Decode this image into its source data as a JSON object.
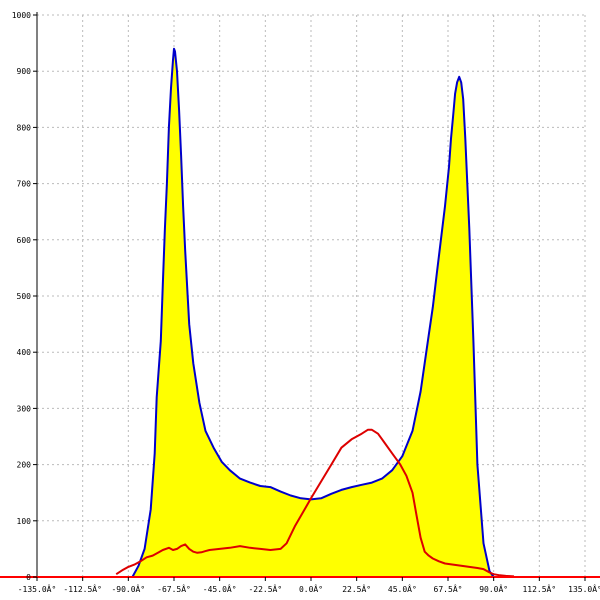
{
  "chart_data": {
    "type": "area",
    "title": "",
    "xlabel": "",
    "ylabel": "",
    "xlim": [
      -135,
      135
    ],
    "ylim": [
      0,
      1000
    ],
    "grid": true,
    "x_ticks": [
      -135,
      -112.5,
      -90,
      -67.5,
      -45,
      -22.5,
      0,
      22.5,
      45,
      67.5,
      90,
      112.5,
      135
    ],
    "x_tick_labels": [
      "-135.0Â°",
      "-112.5Â°",
      "-90.0Â°",
      "-67.5Â°",
      "-45.0Â°",
      "-22.5Â°",
      "0.0Â°",
      "22.5Â°",
      "45.0Â°",
      "67.5Â°",
      "90.0Â°",
      "112.5Â°",
      "135.0Â°"
    ],
    "y_ticks": [
      0,
      100,
      200,
      300,
      400,
      500,
      600,
      700,
      800,
      900,
      1000
    ],
    "y_tick_labels": [
      "0",
      "100",
      "200",
      "300",
      "400",
      "500",
      "600",
      "700",
      "800",
      "900",
      "1000"
    ],
    "colors": {
      "fill": "#ffff00",
      "fill_outline": "#0000cc",
      "line": "#dd0000",
      "grid": "#bbbbbb",
      "axis": "#000000",
      "baseline": "#ff0000"
    },
    "series": [
      {
        "style": "filled-area",
        "x": [
          -96,
          -88,
          -85,
          -82,
          -79,
          -77,
          -76,
          -74,
          -73,
          -72,
          -71,
          -70,
          -69,
          -68,
          -67.5,
          -67,
          -66,
          -65,
          -64,
          -63,
          -62,
          -60,
          -58,
          -55,
          -52,
          -48,
          -44,
          -40,
          -35,
          -30,
          -25,
          -20,
          -15,
          -10,
          -5,
          0,
          5,
          10,
          15,
          20,
          25,
          30,
          35,
          40,
          45,
          50,
          54,
          58,
          60,
          62,
          64,
          66,
          68,
          69,
          70,
          71,
          72,
          73,
          74,
          75,
          76,
          78,
          80,
          82,
          85,
          88,
          90,
          95,
          100
        ],
        "y": [
          0,
          0,
          20,
          50,
          120,
          220,
          320,
          420,
          520,
          620,
          700,
          800,
          870,
          920,
          940,
          935,
          900,
          830,
          750,
          660,
          580,
          450,
          380,
          310,
          260,
          230,
          205,
          190,
          175,
          168,
          162,
          160,
          152,
          145,
          140,
          138,
          140,
          148,
          155,
          160,
          164,
          168,
          175,
          190,
          215,
          260,
          330,
          430,
          480,
          540,
          600,
          660,
          730,
          780,
          820,
          860,
          880,
          890,
          880,
          850,
          780,
          620,
          420,
          200,
          60,
          10,
          0,
          0,
          0
        ]
      },
      {
        "style": "line",
        "x": [
          -96,
          -93,
          -90,
          -87,
          -84,
          -81,
          -78,
          -75,
          -73,
          -70,
          -68,
          -66,
          -64,
          -62,
          -60,
          -58,
          -56,
          -54,
          -52,
          -50,
          -45,
          -40,
          -35,
          -30,
          -25,
          -20,
          -15,
          -12,
          -8,
          -4,
          0,
          5,
          10,
          15,
          20,
          25,
          28,
          30,
          33,
          36,
          40,
          44,
          47,
          50,
          52,
          54,
          56,
          58,
          60,
          63,
          66,
          70,
          74,
          78,
          82,
          85,
          88,
          90,
          93,
          96,
          100
        ],
        "y": [
          5,
          12,
          18,
          22,
          28,
          35,
          38,
          44,
          48,
          52,
          48,
          50,
          55,
          58,
          50,
          45,
          43,
          44,
          46,
          48,
          50,
          52,
          55,
          52,
          50,
          48,
          50,
          60,
          90,
          115,
          140,
          170,
          200,
          230,
          245,
          255,
          262,
          262,
          255,
          240,
          220,
          200,
          180,
          150,
          110,
          70,
          45,
          38,
          33,
          28,
          24,
          22,
          20,
          18,
          16,
          14,
          8,
          5,
          3,
          2,
          1
        ]
      }
    ]
  }
}
